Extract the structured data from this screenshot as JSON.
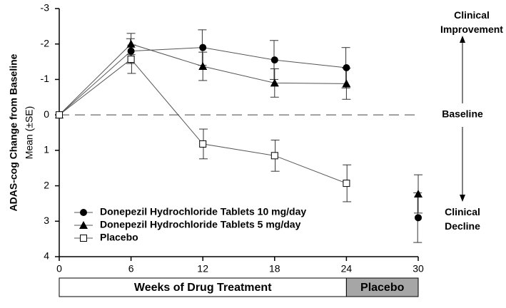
{
  "chart_data": {
    "type": "line",
    "y_label": "ADAS-cog Change from Baseline",
    "y_sublabel": "Mean (±SE)",
    "x": [
      0,
      6,
      12,
      18,
      24,
      30
    ],
    "connect_until_x": 24,
    "series": [
      {
        "name": "Donepezil Hydrochloride Tablets 10 mg/day",
        "color": "#000000",
        "marker": "circle",
        "values": [
          0,
          -1.8,
          -1.9,
          -1.55,
          -1.33,
          2.9
        ],
        "errors": [
          null,
          0.35,
          0.5,
          0.55,
          0.57,
          0.7
        ]
      },
      {
        "name": "Donepezil Hydrochloride Tablets 5 mg/day",
        "color": "#000000",
        "marker": "triangle",
        "values": [
          0,
          -2.0,
          -1.37,
          -0.9,
          -0.88,
          2.23
        ],
        "errors": [
          null,
          0.3,
          0.4,
          0.4,
          0.44,
          0.54
        ]
      },
      {
        "name": "Placebo",
        "color": "#000000",
        "marker": "square",
        "values": [
          0,
          -1.57,
          0.82,
          1.15,
          1.93,
          null
        ],
        "errors": [
          null,
          0.4,
          0.42,
          0.44,
          0.52,
          null
        ]
      }
    ],
    "ylim": [
      -3,
      4
    ],
    "yticks": [
      -3,
      -2,
      -1,
      0,
      1,
      2,
      3,
      4
    ],
    "y_inverted": true,
    "xlim": [
      0,
      30
    ],
    "xticks": [
      0,
      6,
      12,
      18,
      24,
      30
    ],
    "reference_line": 0,
    "annotations": {
      "top": "Clinical Improvement",
      "middle": "Baseline",
      "bottom": "Clinical Decline"
    },
    "phase_labels": {
      "treatment": "Weeks of Drug Treatment",
      "placebo": "Placebo"
    }
  }
}
